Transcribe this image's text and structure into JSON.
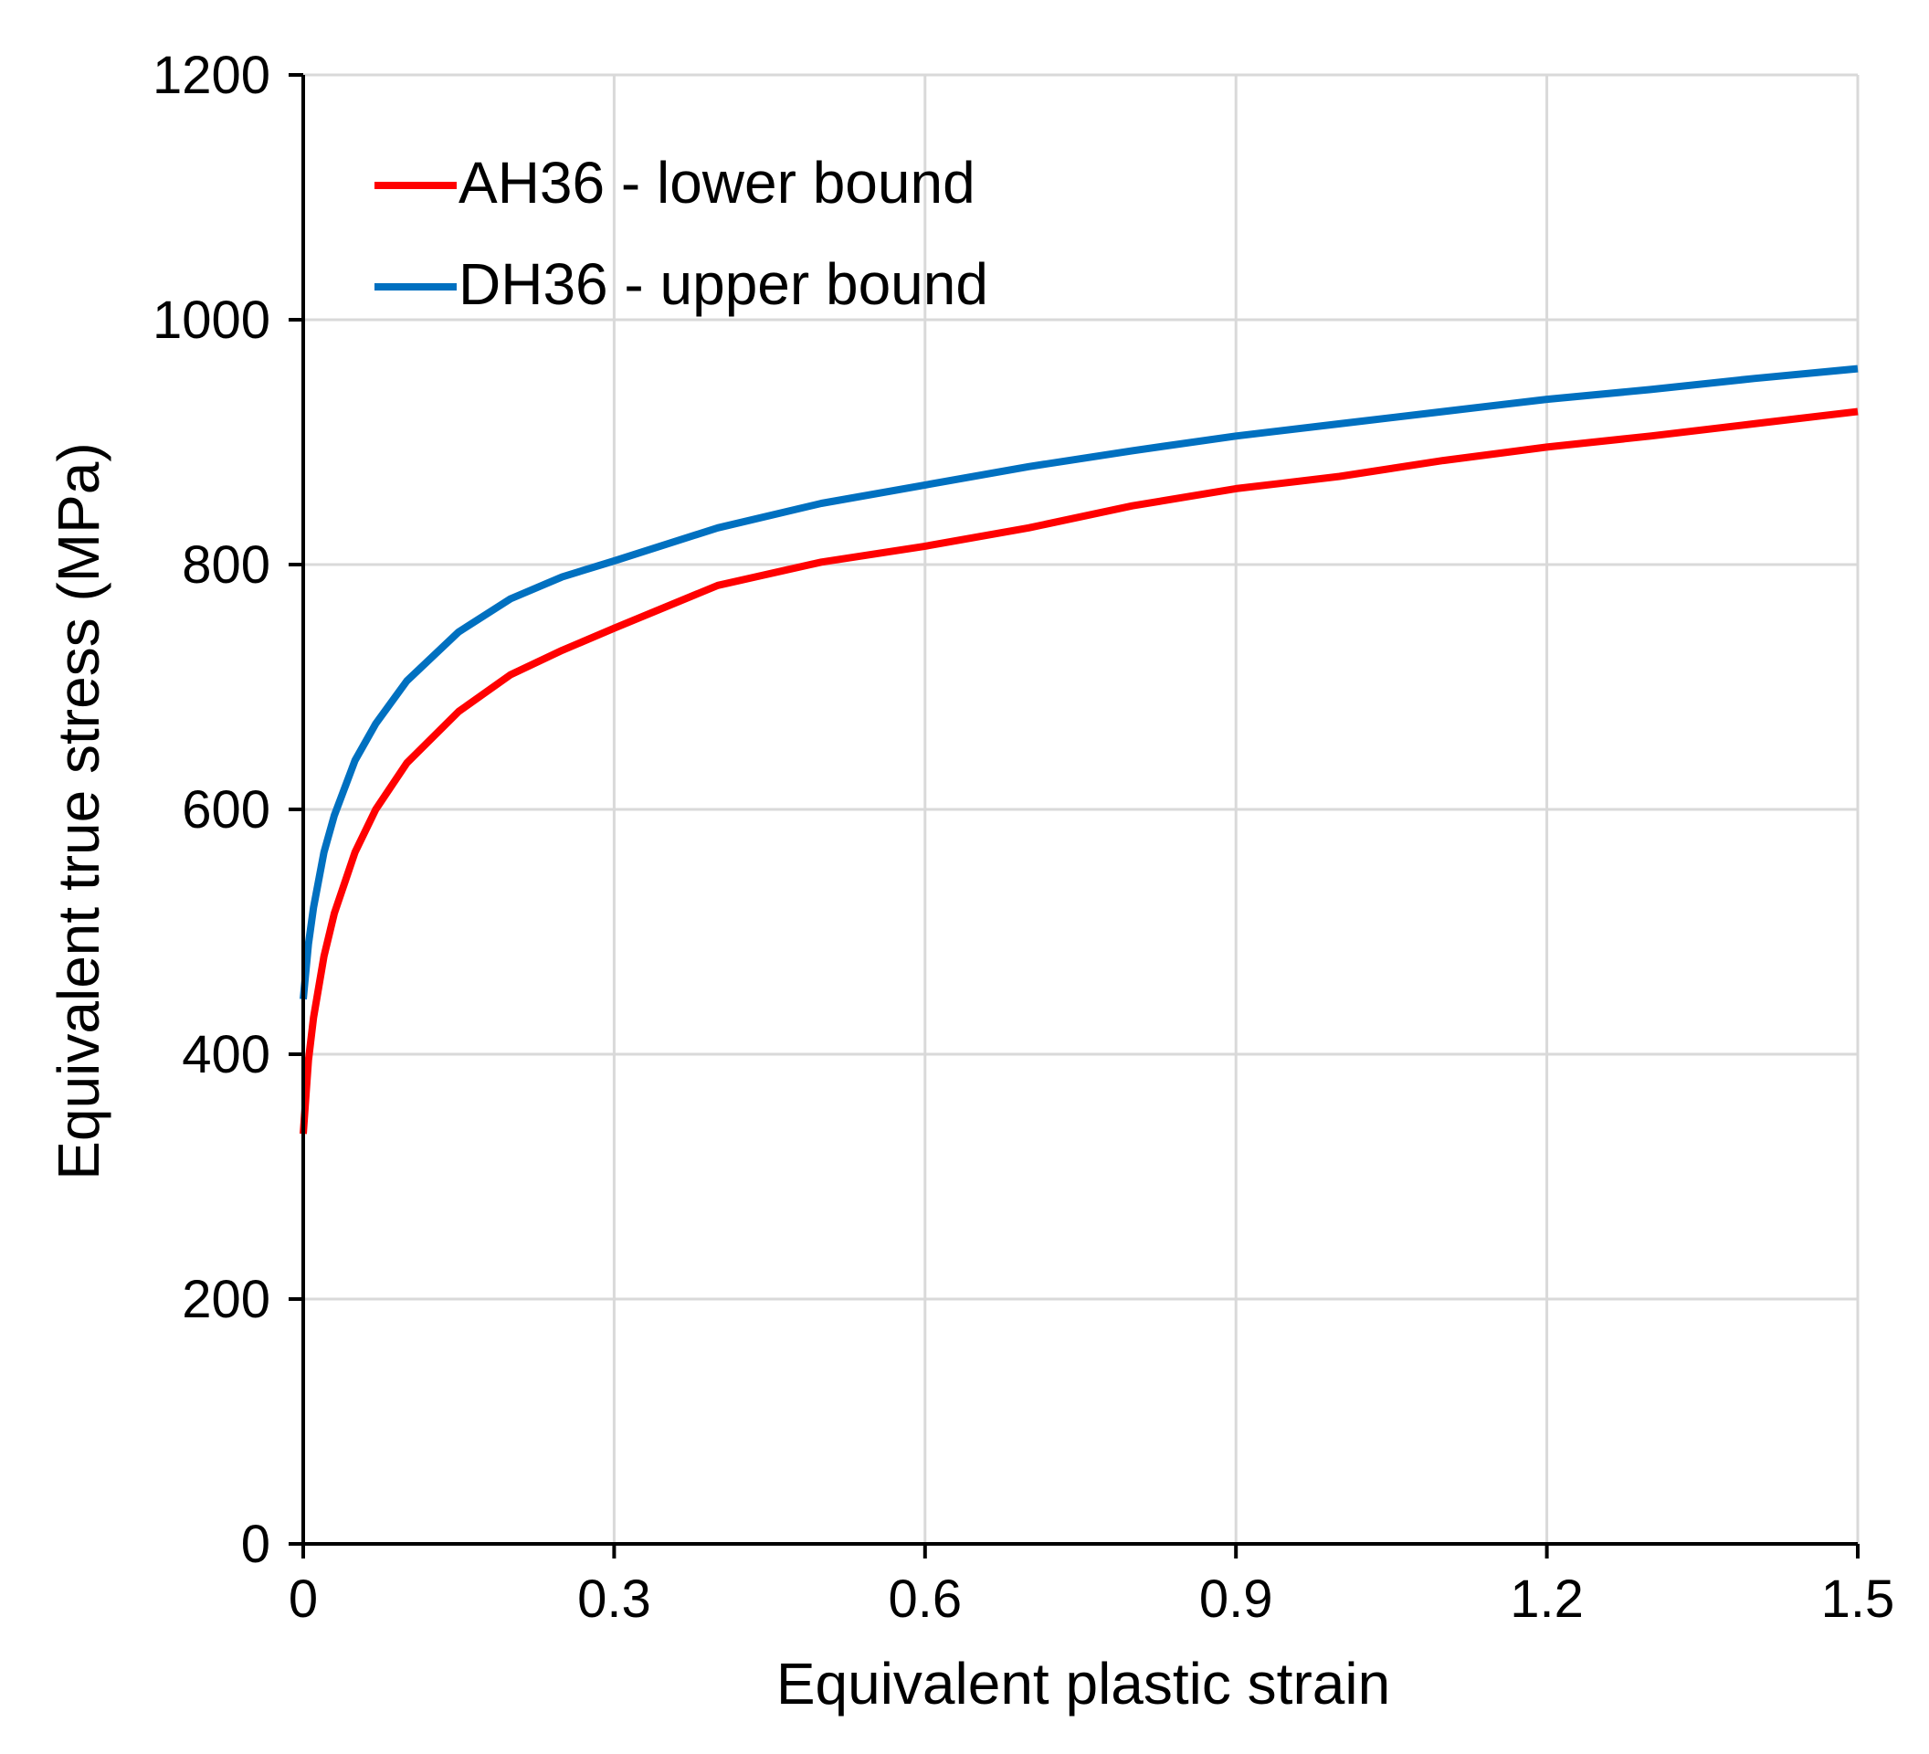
{
  "chart_data": {
    "type": "line",
    "title": "",
    "xlabel": "Equivalent plastic strain",
    "ylabel": "Equivalent true stress (MPa)",
    "xlim": [
      0,
      1.5
    ],
    "ylim": [
      0,
      1200
    ],
    "x_ticks": [
      0,
      0.3,
      0.6,
      0.9,
      1.2,
      1.5
    ],
    "x_tick_labels": [
      "0",
      "0.3",
      "0.6",
      "0.9",
      "1.2",
      "1.5"
    ],
    "y_ticks": [
      0,
      200,
      400,
      600,
      800,
      1000,
      1200
    ],
    "y_tick_labels": [
      "0",
      "200",
      "400",
      "600",
      "800",
      "1000",
      "1200"
    ],
    "grid": true,
    "legend_position": "top-left",
    "series": [
      {
        "name": "AH36 - lower bound",
        "color": "#ff0000",
        "x": [
          0,
          0.005,
          0.01,
          0.02,
          0.03,
          0.05,
          0.07,
          0.1,
          0.15,
          0.2,
          0.25,
          0.3,
          0.4,
          0.5,
          0.6,
          0.7,
          0.8,
          0.9,
          1.0,
          1.1,
          1.2,
          1.3,
          1.4,
          1.5
        ],
        "y": [
          335,
          395,
          430,
          480,
          515,
          565,
          600,
          638,
          680,
          710,
          730,
          748,
          783,
          802,
          815,
          830,
          848,
          862,
          872,
          885,
          896,
          905,
          915,
          925
        ]
      },
      {
        "name": "DH36 - upper bound",
        "color": "#0070c0",
        "x": [
          0,
          0.005,
          0.01,
          0.02,
          0.03,
          0.05,
          0.07,
          0.1,
          0.15,
          0.2,
          0.25,
          0.3,
          0.4,
          0.5,
          0.6,
          0.7,
          0.8,
          0.9,
          1.0,
          1.1,
          1.2,
          1.3,
          1.4,
          1.5
        ],
        "y": [
          445,
          490,
          520,
          565,
          595,
          640,
          670,
          705,
          745,
          772,
          790,
          803,
          830,
          850,
          865,
          880,
          893,
          905,
          915,
          925,
          935,
          943,
          952,
          960
        ]
      }
    ]
  }
}
